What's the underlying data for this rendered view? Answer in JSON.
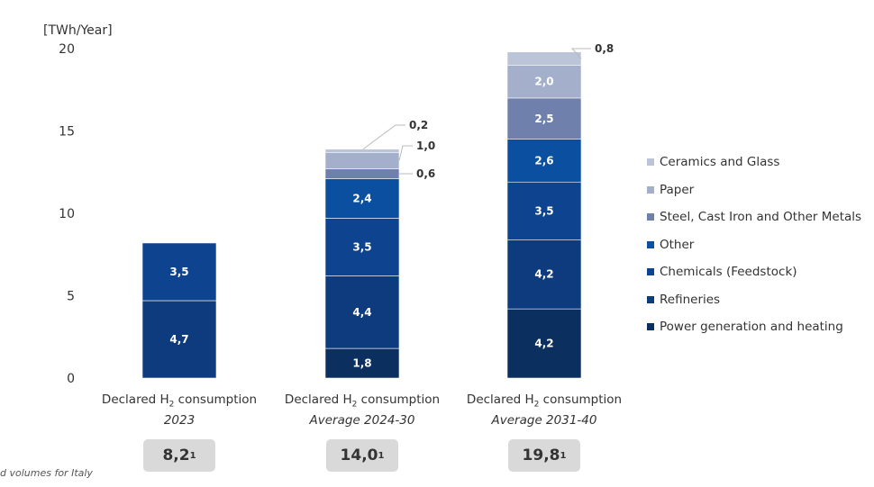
{
  "chart_data": {
    "type": "bar",
    "stacked": true,
    "ylabel": "[TWh/Year]",
    "ylim": [
      0,
      20
    ],
    "yticks": [
      0,
      5,
      10,
      15,
      20
    ],
    "categories": [
      {
        "line1": "Declared H",
        "sub": "2",
        "line1b": " consumption",
        "line2": "2023"
      },
      {
        "line1": "Declared H",
        "sub": "2",
        "line1b": " consumption",
        "line2": "Average 2024-30"
      },
      {
        "line1": "Declared H",
        "sub": "2",
        "line1b": " consumption",
        "line2": "Average 2031-40"
      }
    ],
    "series": [
      {
        "name": "Power generation and heating",
        "color": "#0b2f5e",
        "values": [
          0,
          1.8,
          4.2
        ],
        "labels": [
          "",
          "1,8",
          "4,2"
        ]
      },
      {
        "name": "Refineries",
        "color": "#0d3b7d",
        "values": [
          4.7,
          4.4,
          4.2
        ],
        "labels": [
          "4,7",
          "4,4",
          "4,2"
        ]
      },
      {
        "name": "Chemicals (Feedstock)",
        "color": "#0e438f",
        "values": [
          3.5,
          3.5,
          3.5
        ],
        "labels": [
          "3,5",
          "3,5",
          "3,5"
        ]
      },
      {
        "name": "Other",
        "color": "#0a4fa0",
        "values": [
          0,
          2.4,
          2.6
        ],
        "labels": [
          "",
          "2,4",
          "2,6"
        ]
      },
      {
        "name": "Steel, Cast Iron and Other Metals",
        "color": "#6f80ad",
        "values": [
          0,
          0.6,
          2.5
        ],
        "labels": [
          "",
          "0,6",
          "2,5"
        ]
      },
      {
        "name": "Paper",
        "color": "#a3afcb",
        "values": [
          0,
          1.0,
          2.0
        ],
        "labels": [
          "",
          "1,0",
          "2,0"
        ]
      },
      {
        "name": "Ceramics and Glass",
        "color": "#bcc4d8",
        "values": [
          0,
          0.2,
          0.8
        ],
        "labels": [
          "",
          "0,2",
          "0,8"
        ]
      }
    ],
    "totals": [
      "8,2",
      "14,0",
      "19,8"
    ],
    "total_sup": "1",
    "legend_position": "right"
  },
  "footnote": "d volumes for Italy"
}
